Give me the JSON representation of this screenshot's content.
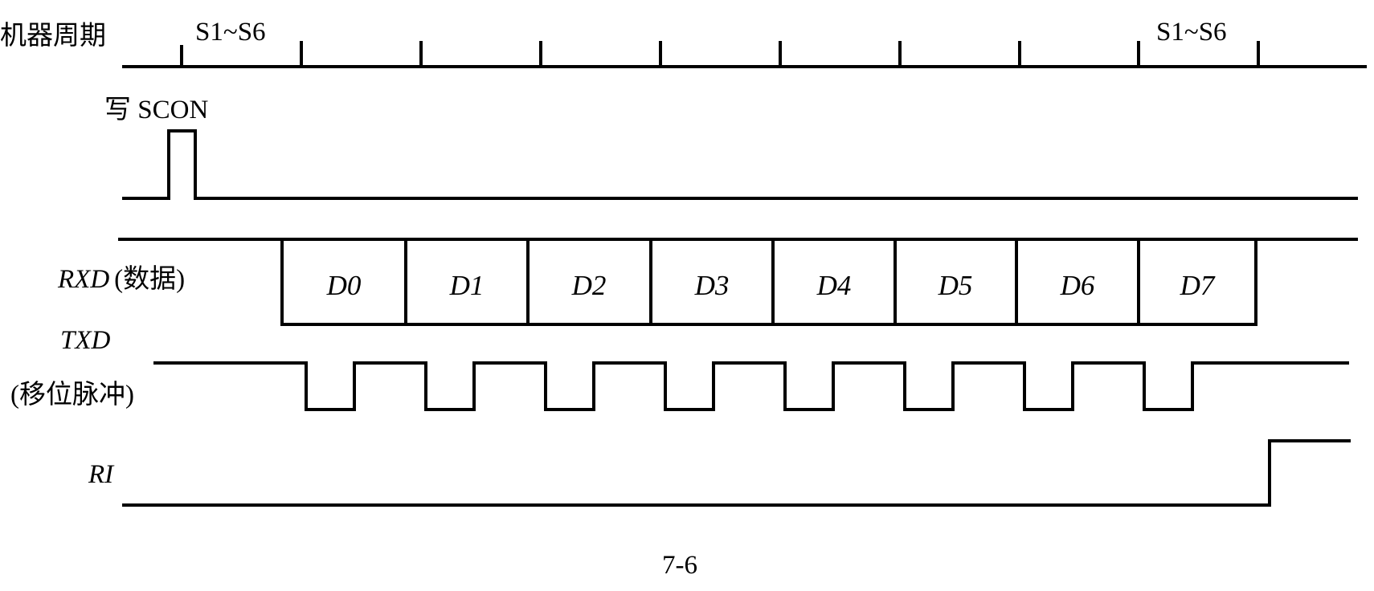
{
  "colors": {
    "line": "#000000",
    "background": "#ffffff"
  },
  "machine_cycle": {
    "label": "机器周期",
    "state_labels": [
      "S1~S6",
      "S1~S6"
    ]
  },
  "write_scon": {
    "label": "写 SCON"
  },
  "rxd": {
    "name": "RXD",
    "note": "(数据)",
    "bits": [
      "D0",
      "D1",
      "D2",
      "D3",
      "D4",
      "D5",
      "D6",
      "D7"
    ]
  },
  "txd": {
    "name": "TXD",
    "note": "(移位脉冲)"
  },
  "ri": {
    "name": "RI"
  },
  "caption": "7-6"
}
